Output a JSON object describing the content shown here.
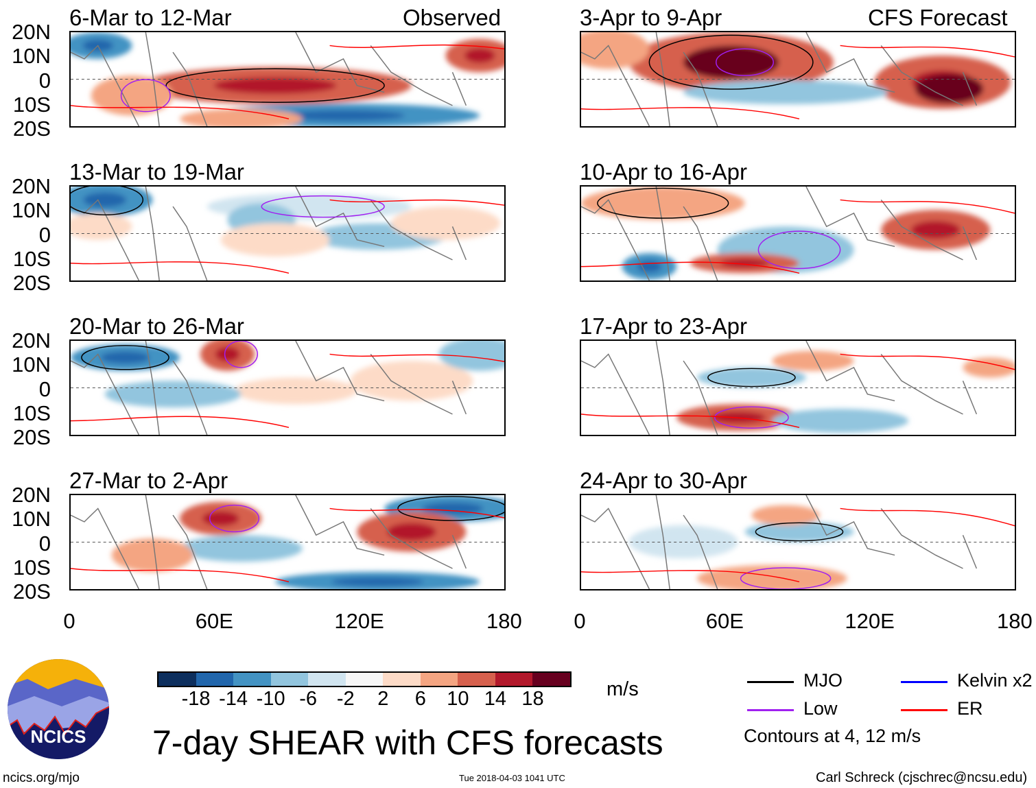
{
  "headers": {
    "left": "Observed",
    "right": "CFS Forecast"
  },
  "panels": [
    {
      "title": "6-Mar to 12-Mar",
      "column": "observed"
    },
    {
      "title": "13-Mar to 19-Mar",
      "column": "observed"
    },
    {
      "title": "20-Mar to 26-Mar",
      "column": "observed"
    },
    {
      "title": "27-Mar to 2-Apr",
      "column": "observed"
    },
    {
      "title": "3-Apr to 9-Apr",
      "column": "forecast"
    },
    {
      "title": "10-Apr to 16-Apr",
      "column": "forecast"
    },
    {
      "title": "17-Apr to 23-Apr",
      "column": "forecast"
    },
    {
      "title": "24-Apr to 30-Apr",
      "column": "forecast"
    }
  ],
  "lat_labels": [
    "20N",
    "10N",
    "0",
    "10S",
    "20S"
  ],
  "lon_labels": [
    "0",
    "60E",
    "120E",
    "180"
  ],
  "colorbar": {
    "labels": [
      "-18",
      "-14",
      "-10",
      "-6",
      "-2",
      "2",
      "6",
      "10",
      "14",
      "18"
    ],
    "colors": [
      "#0d2f5e",
      "#2166ac",
      "#4393c3",
      "#92c5de",
      "#d1e5f0",
      "#f7f7f7",
      "#fddbc7",
      "#f4a582",
      "#d6604d",
      "#b2182b",
      "#67001f"
    ],
    "units": "m/s"
  },
  "title": "7-day SHEAR with CFS forecasts",
  "legend": [
    {
      "label": "MJO",
      "color": "#000000"
    },
    {
      "label": "Kelvin x2",
      "color": "#0000ff"
    },
    {
      "label": "Low",
      "color": "#a020f0"
    },
    {
      "label": "ER",
      "color": "#ff0000"
    }
  ],
  "contours_note": "Contours at 4, 12 m/s",
  "logo_text": "NCICS",
  "footer": {
    "url": "ncics.org/mjo",
    "timestamp": "Tue 2018-04-03 1041 UTC",
    "author": "Carl Schreck (cjschrec@ncsu.edu)"
  }
}
